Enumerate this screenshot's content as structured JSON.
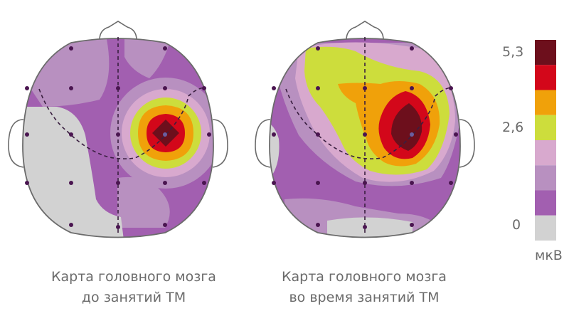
{
  "maps": [
    {
      "id": "before",
      "caption_line1": "Карта головного мозга",
      "caption_line2": "до занятий ТМ"
    },
    {
      "id": "during",
      "caption_line1": "Карта головного мозга",
      "caption_line2": "во время занятий ТМ"
    }
  ],
  "scale": {
    "labels": {
      "top": "5,3",
      "mid": "2,6",
      "bottom": "0"
    },
    "unit": "мкВ",
    "colors": [
      "#6d0f1c",
      "#d3071a",
      "#f0a10a",
      "#cddd3c",
      "#d8a9ce",
      "#b890c0",
      "#a25fb0",
      "#d2d2d2"
    ]
  },
  "colors": {
    "outline": "#6b6b6b",
    "electrode": "#4a1550",
    "boundary": "#3a1f40"
  }
}
